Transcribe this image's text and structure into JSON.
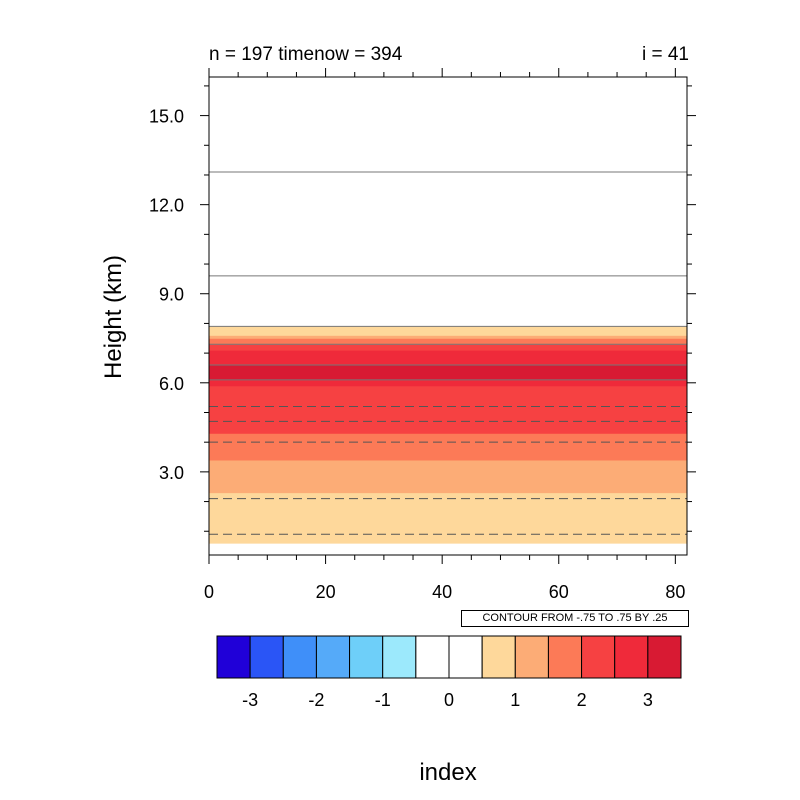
{
  "title_left": "n = 197  timenow = 394",
  "title_right": "i = 41",
  "info_label": "CONTOUR FROM -.75 TO .75 BY .25",
  "chart_data": {
    "type": "heatmap",
    "xlabel": "index",
    "ylabel": "Height (km)",
    "xlim": [
      0,
      82
    ],
    "ylim": [
      0.2,
      16.3
    ],
    "x_ticks": [
      0,
      20,
      40,
      60,
      80
    ],
    "y_ticks": [
      3.0,
      6.0,
      9.0,
      12.0,
      15.0
    ],
    "x_tick_labels": [
      "0",
      "20",
      "40",
      "60",
      "80"
    ],
    "y_tick_labels": [
      "3.0",
      "6.0",
      "9.0",
      "12.0",
      "15.0"
    ],
    "filled_bands": [
      {
        "y0": 0.6,
        "y1": 2.3,
        "level": 1,
        "color": "#fed89b"
      },
      {
        "y0": 2.3,
        "y1": 3.4,
        "level": 1.5,
        "color": "#fcac76"
      },
      {
        "y0": 3.4,
        "y1": 4.3,
        "level": 2,
        "color": "#fc7a57"
      },
      {
        "y0": 4.3,
        "y1": 5.9,
        "level": 2.5,
        "color": "#f64142"
      },
      {
        "y0": 5.9,
        "y1": 6.1,
        "level": 3,
        "color": "#ef2a3a"
      },
      {
        "y0": 6.1,
        "y1": 6.6,
        "level": 3.5,
        "color": "#d81a33"
      },
      {
        "y0": 6.6,
        "y1": 7.1,
        "level": 3,
        "color": "#ef2a3a"
      },
      {
        "y0": 7.1,
        "y1": 7.3,
        "level": 2.5,
        "color": "#f64142"
      },
      {
        "y0": 7.3,
        "y1": 7.5,
        "level": 2,
        "color": "#fc7a57"
      },
      {
        "y0": 7.5,
        "y1": 7.6,
        "level": 1.5,
        "color": "#fcac76"
      },
      {
        "y0": 7.6,
        "y1": 7.9,
        "level": 1,
        "color": "#fed89b"
      }
    ],
    "contour_lines": [
      {
        "y": 13.1,
        "style": "solid"
      },
      {
        "y": 9.6,
        "style": "solid"
      },
      {
        "y": 7.9,
        "style": "solid"
      },
      {
        "y": 7.3,
        "style": "solid"
      },
      {
        "y": 6.6,
        "style": "solid"
      },
      {
        "y": 6.1,
        "style": "solid"
      },
      {
        "y": 5.2,
        "style": "dashed"
      },
      {
        "y": 4.7,
        "style": "dashed"
      },
      {
        "y": 4.0,
        "style": "dashed"
      },
      {
        "y": 2.1,
        "style": "dashed"
      },
      {
        "y": 0.9,
        "style": "dashed"
      }
    ],
    "colorbar": {
      "colors": [
        "#2000d8",
        "#2a55f6",
        "#3f8ff9",
        "#55aaf9",
        "#6ecff9",
        "#9ce9fc",
        "#ffffff",
        "#ffffff",
        "#fed89b",
        "#fcac76",
        "#fc7a57",
        "#f64142",
        "#ef2a3a",
        "#d81a33"
      ],
      "tick_labels": [
        "-3",
        "-2",
        "-1",
        "0",
        "1",
        "2",
        "3"
      ],
      "tick_box_boundaries": [
        1,
        3,
        5,
        7,
        9,
        11,
        13
      ]
    }
  }
}
